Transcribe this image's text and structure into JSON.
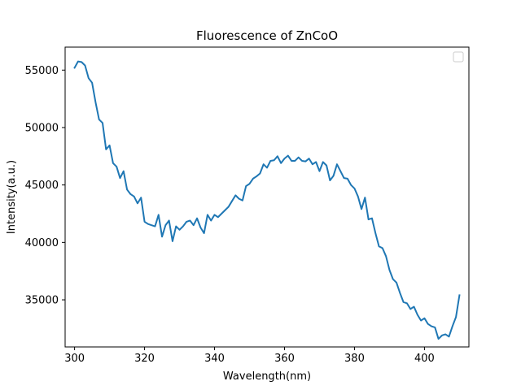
{
  "chart_data": {
    "type": "line",
    "title": "Fluorescence of ZnCoO",
    "xlabel": "Wavelength(nm)",
    "ylabel": "Intensity(a.u.)",
    "xlim": [
      297.3,
      412.7
    ],
    "ylim": [
      30900,
      57000
    ],
    "xticks": [
      300,
      320,
      340,
      360,
      380,
      400
    ],
    "yticks": [
      35000,
      40000,
      45000,
      50000,
      55000
    ],
    "xtick_labels": [
      "300",
      "320",
      "340",
      "360",
      "380",
      "400"
    ],
    "ytick_labels": [
      "35000",
      "40000",
      "45000",
      "50000",
      "55000"
    ],
    "grid": false,
    "legend": {
      "placement": "top-right",
      "entries": []
    },
    "series": [
      {
        "color": "#1f77b4",
        "x": [
          300,
          301,
          302,
          303,
          304,
          305,
          306,
          307,
          308,
          309,
          310,
          311,
          312,
          313,
          314,
          315,
          316,
          317,
          318,
          319,
          320,
          321,
          322,
          323,
          324,
          325,
          326,
          327,
          328,
          329,
          330,
          331,
          332,
          333,
          334,
          335,
          336,
          337,
          338,
          339,
          340,
          341,
          342,
          343,
          344,
          345,
          346,
          347,
          348,
          349,
          350,
          351,
          352,
          353,
          354,
          355,
          356,
          357,
          358,
          359,
          360,
          361,
          362,
          363,
          364,
          365,
          366,
          367,
          368,
          369,
          370,
          371,
          372,
          373,
          374,
          375,
          376,
          377,
          378,
          379,
          380,
          381,
          382,
          383,
          384,
          385,
          386,
          387,
          388,
          389,
          390,
          391,
          392,
          393,
          394,
          395,
          396,
          397,
          398,
          399,
          400,
          401,
          402,
          403,
          404,
          405,
          406,
          407,
          408,
          409,
          410
        ],
        "y": [
          55200,
          55750,
          55700,
          55400,
          54300,
          53900,
          52200,
          50700,
          50400,
          48100,
          48450,
          46900,
          46600,
          45600,
          46200,
          44600,
          44200,
          44000,
          43400,
          43900,
          41800,
          41600,
          41500,
          41400,
          42400,
          40500,
          41500,
          41900,
          40100,
          41400,
          41100,
          41400,
          41800,
          41900,
          41500,
          42100,
          41300,
          40800,
          42400,
          41900,
          42400,
          42200,
          42500,
          42800,
          43100,
          43600,
          44100,
          43800,
          43650,
          44900,
          45100,
          45550,
          45750,
          46000,
          46800,
          46500,
          47100,
          47150,
          47500,
          46900,
          47300,
          47550,
          47100,
          47100,
          47400,
          47100,
          47050,
          47300,
          46800,
          47000,
          46200,
          47000,
          46700,
          45400,
          45800,
          46800,
          46200,
          45600,
          45550,
          45000,
          44700,
          44000,
          42900,
          43900,
          42000,
          42100,
          40800,
          39650,
          39500,
          38800,
          37600,
          36800,
          36500,
          35600,
          34800,
          34700,
          34200,
          34400,
          33700,
          33200,
          33400,
          32900,
          32700,
          32600,
          31600,
          31900,
          32000,
          31800,
          32700,
          33500,
          35400
        ]
      }
    ]
  }
}
